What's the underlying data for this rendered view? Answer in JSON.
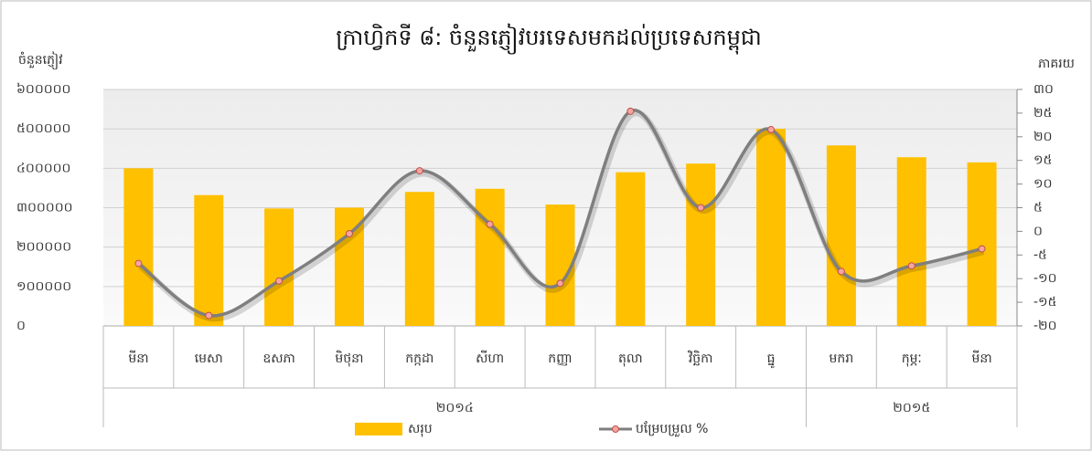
{
  "chart_data": {
    "type": "bar-line",
    "title": "ក្រាហ្វិកទី ៨: ចំនួនភ្ញៀវបរទេសមកដល់ប្រទេសកម្ពុជា",
    "y_label": "ចំនួនភ្ញៀវ",
    "y2_label": "ភាគរយ",
    "categories": [
      "មីនា",
      "មេសា",
      "ឧសភា",
      "មិថុនា",
      "កក្កដា",
      "សីហា",
      "កញ្ញា",
      "តុលា",
      "វិច្ឆិកា",
      "ធ្នូ",
      "មករា",
      "កុម្ភៈ",
      "មីនា"
    ],
    "groups": [
      {
        "label": "២០១៤",
        "span": 10
      },
      {
        "label": "២០១៥",
        "span": 3
      }
    ],
    "series": [
      {
        "name": "សរុប",
        "type": "bar",
        "color": "#ffc000",
        "values": [
          400000,
          332000,
          298000,
          300000,
          340000,
          348000,
          308000,
          390000,
          412000,
          500000,
          458000,
          428000,
          415000
        ]
      },
      {
        "name": "បម្រែបម្រួល %",
        "type": "line",
        "axis": "y2",
        "color": "#7f7f7f",
        "marker_color": "#f4a6a0",
        "values": [
          -6.8,
          -17.8,
          -10.5,
          -0.5,
          12.8,
          1.5,
          -11,
          25.4,
          5,
          21.5,
          -8.5,
          -7.3,
          -3.7
        ]
      }
    ],
    "ylim": [
      0,
      600000
    ],
    "yticks": [
      {
        "value": 0,
        "label": "០"
      },
      {
        "value": 100000,
        "label": "១០០០០០"
      },
      {
        "value": 200000,
        "label": "២០០០០០"
      },
      {
        "value": 300000,
        "label": "៣០០០០០"
      },
      {
        "value": 400000,
        "label": "៤០០០០០"
      },
      {
        "value": 500000,
        "label": "៥០០០០០"
      },
      {
        "value": 600000,
        "label": "៦០០០០០"
      }
    ],
    "y2lim": [
      -20,
      30
    ],
    "y2ticks": [
      {
        "value": -20,
        "label": "-២០"
      },
      {
        "value": -15,
        "label": "-១៥"
      },
      {
        "value": -10,
        "label": "-១០"
      },
      {
        "value": -5,
        "label": "-៥"
      },
      {
        "value": 0,
        "label": "០"
      },
      {
        "value": 5,
        "label": "៥"
      },
      {
        "value": 10,
        "label": "១០"
      },
      {
        "value": 15,
        "label": "១៥"
      },
      {
        "value": 20,
        "label": "២០"
      },
      {
        "value": 25,
        "label": "២៥"
      },
      {
        "value": 30,
        "label": "៣០"
      }
    ],
    "grid": true
  }
}
